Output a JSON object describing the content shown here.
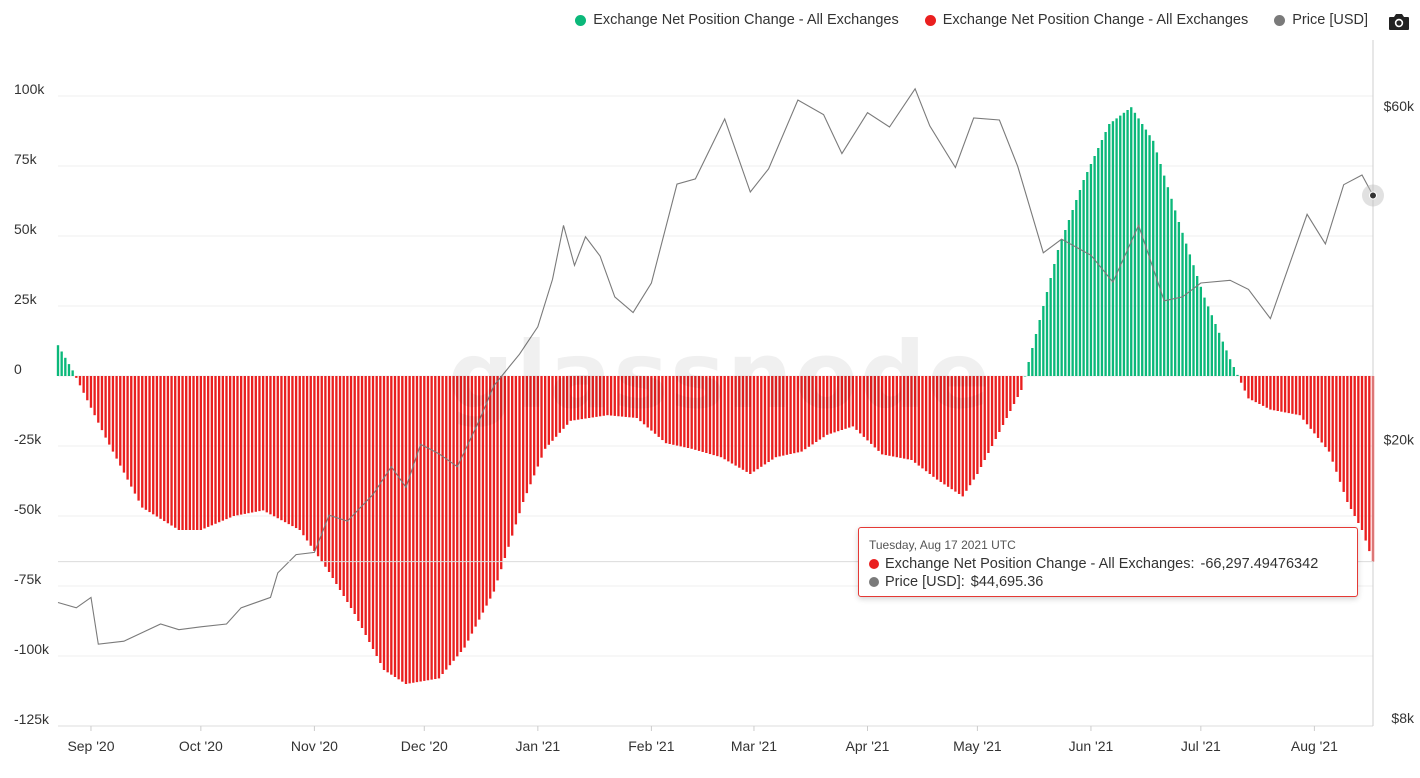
{
  "legend": {
    "items": [
      {
        "label": "Exchange Net Position Change - All Exchanges",
        "color": "#0bb87a"
      },
      {
        "label": "Exchange Net Position Change - All Exchanges",
        "color": "#ea1f1f"
      },
      {
        "label": "Price [USD]",
        "color": "#7a7a7a"
      }
    ]
  },
  "toolbar": {
    "icon": "camera-icon"
  },
  "watermark": "glassnode",
  "tooltip": {
    "date": "Tuesday, Aug 17 2021 UTC",
    "series1_label": "Exchange Net Position Change - All Exchanges:",
    "series1_value": "-66,297.49476342",
    "series1_color": "#ea1f1f",
    "series2_label": "Price [USD]:",
    "series2_value": "$44,695.36",
    "series2_color": "#7a7a7a"
  },
  "chart_data": {
    "type": "bar",
    "grid": true,
    "legend_position": "top-right",
    "x_labels": [
      "Sep '20",
      "Oct '20",
      "Nov '20",
      "Dec '20",
      "Jan '21",
      "Feb '21",
      "Mar '21",
      "Apr '21",
      "May '21",
      "Jun '21",
      "Jul '21",
      "Aug '21"
    ],
    "x_label_dates": [
      "2020-09-01",
      "2020-10-01",
      "2020-11-01",
      "2020-12-01",
      "2021-01-01",
      "2021-02-01",
      "2021-03-01",
      "2021-04-01",
      "2021-05-01",
      "2021-06-01",
      "2021-07-01",
      "2021-08-01"
    ],
    "x_range": [
      "2020-08-23",
      "2021-08-17"
    ],
    "y_left": {
      "ticks": [
        100000,
        75000,
        50000,
        25000,
        0,
        -25000,
        -50000,
        -75000,
        -100000,
        -125000
      ],
      "tick_labels": [
        "100k",
        "75k",
        "50k",
        "25k",
        "0",
        "-25k",
        "-50k",
        "-75k",
        "-100k",
        "-125k"
      ],
      "range": [
        -125000,
        100000
      ]
    },
    "y_right": {
      "ticks": [
        60000,
        20000,
        8000
      ],
      "tick_labels": [
        "$60k",
        "$20k",
        "$8k"
      ],
      "scale": "log",
      "range": [
        8000,
        60000
      ]
    },
    "net_position_change": {
      "positive_color": "#0bb87a",
      "negative_color": "#ea1f1f",
      "points": [
        [
          "2020-08-23",
          11000
        ],
        [
          "2020-08-27",
          2000
        ],
        [
          "2020-09-05",
          -22000
        ],
        [
          "2020-09-15",
          -47000
        ],
        [
          "2020-09-25",
          -55000
        ],
        [
          "2020-10-01",
          -55000
        ],
        [
          "2020-10-10",
          -50000
        ],
        [
          "2020-10-18",
          -48000
        ],
        [
          "2020-10-28",
          -55000
        ],
        [
          "2020-11-05",
          -70000
        ],
        [
          "2020-11-12",
          -85000
        ],
        [
          "2020-11-20",
          -105000
        ],
        [
          "2020-11-26",
          -110000
        ],
        [
          "2020-12-05",
          -108000
        ],
        [
          "2020-12-12",
          -97000
        ],
        [
          "2020-12-20",
          -77000
        ],
        [
          "2020-12-28",
          -45000
        ],
        [
          "2021-01-03",
          -26000
        ],
        [
          "2021-01-10",
          -16000
        ],
        [
          "2021-01-20",
          -14000
        ],
        [
          "2021-01-28",
          -15000
        ],
        [
          "2021-02-05",
          -24000
        ],
        [
          "2021-02-12",
          -26000
        ],
        [
          "2021-02-20",
          -29000
        ],
        [
          "2021-02-28",
          -35000
        ],
        [
          "2021-03-07",
          -29000
        ],
        [
          "2021-03-14",
          -27000
        ],
        [
          "2021-03-21",
          -21000
        ],
        [
          "2021-03-28",
          -18000
        ],
        [
          "2021-04-05",
          -28000
        ],
        [
          "2021-04-13",
          -30000
        ],
        [
          "2021-04-20",
          -37000
        ],
        [
          "2021-04-27",
          -43000
        ],
        [
          "2021-05-01",
          -35000
        ],
        [
          "2021-05-07",
          -20000
        ],
        [
          "2021-05-13",
          -5000
        ],
        [
          "2021-05-17",
          15000
        ],
        [
          "2021-05-23",
          45000
        ],
        [
          "2021-05-30",
          70000
        ],
        [
          "2021-06-06",
          90000
        ],
        [
          "2021-06-12",
          96000
        ],
        [
          "2021-06-18",
          84000
        ],
        [
          "2021-06-25",
          55000
        ],
        [
          "2021-07-02",
          28000
        ],
        [
          "2021-07-09",
          6000
        ],
        [
          "2021-07-14",
          -8000
        ],
        [
          "2021-07-20",
          -12000
        ],
        [
          "2021-07-28",
          -14000
        ],
        [
          "2021-08-05",
          -27000
        ],
        [
          "2021-08-10",
          -45000
        ],
        [
          "2021-08-14",
          -55000
        ],
        [
          "2021-08-17",
          -66297
        ]
      ]
    },
    "price_usd": {
      "color": "#7a7a7a",
      "points": [
        [
          "2020-08-23",
          11700
        ],
        [
          "2020-08-28",
          11500
        ],
        [
          "2020-09-01",
          11900
        ],
        [
          "2020-09-03",
          10200
        ],
        [
          "2020-09-10",
          10300
        ],
        [
          "2020-09-20",
          10900
        ],
        [
          "2020-09-25",
          10700
        ],
        [
          "2020-10-01",
          10800
        ],
        [
          "2020-10-08",
          10900
        ],
        [
          "2020-10-12",
          11500
        ],
        [
          "2020-10-20",
          11900
        ],
        [
          "2020-10-22",
          12900
        ],
        [
          "2020-10-27",
          13700
        ],
        [
          "2020-11-01",
          13800
        ],
        [
          "2020-11-05",
          15600
        ],
        [
          "2020-11-10",
          15300
        ],
        [
          "2020-11-17",
          16700
        ],
        [
          "2020-11-22",
          18300
        ],
        [
          "2020-11-26",
          17100
        ],
        [
          "2020-11-30",
          19700
        ],
        [
          "2020-12-05",
          19100
        ],
        [
          "2020-12-10",
          18300
        ],
        [
          "2020-12-16",
          21300
        ],
        [
          "2020-12-20",
          23900
        ],
        [
          "2020-12-27",
          26500
        ],
        [
          "2021-01-01",
          29000
        ],
        [
          "2021-01-05",
          33900
        ],
        [
          "2021-01-08",
          40500
        ],
        [
          "2021-01-11",
          35500
        ],
        [
          "2021-01-14",
          39000
        ],
        [
          "2021-01-18",
          36600
        ],
        [
          "2021-01-22",
          32000
        ],
        [
          "2021-01-27",
          30400
        ],
        [
          "2021-02-01",
          33500
        ],
        [
          "2021-02-08",
          46400
        ],
        [
          "2021-02-13",
          47200
        ],
        [
          "2021-02-21",
          57500
        ],
        [
          "2021-02-28",
          45200
        ],
        [
          "2021-03-05",
          48800
        ],
        [
          "2021-03-13",
          61200
        ],
        [
          "2021-03-20",
          58300
        ],
        [
          "2021-03-25",
          51300
        ],
        [
          "2021-04-01",
          58700
        ],
        [
          "2021-04-07",
          56000
        ],
        [
          "2021-04-14",
          63500
        ],
        [
          "2021-04-18",
          56200
        ],
        [
          "2021-04-25",
          49000
        ],
        [
          "2021-04-30",
          57700
        ],
        [
          "2021-05-07",
          57300
        ],
        [
          "2021-05-12",
          49200
        ],
        [
          "2021-05-19",
          37000
        ],
        [
          "2021-05-24",
          38700
        ],
        [
          "2021-06-01",
          36700
        ],
        [
          "2021-06-07",
          33600
        ],
        [
          "2021-06-14",
          40500
        ],
        [
          "2021-06-21",
          31600
        ],
        [
          "2021-06-26",
          32000
        ],
        [
          "2021-07-01",
          33500
        ],
        [
          "2021-07-09",
          33800
        ],
        [
          "2021-07-14",
          32800
        ],
        [
          "2021-07-20",
          29800
        ],
        [
          "2021-07-25",
          35400
        ],
        [
          "2021-07-30",
          42000
        ],
        [
          "2021-08-04",
          38100
        ],
        [
          "2021-08-09",
          46300
        ],
        [
          "2021-08-14",
          47800
        ],
        [
          "2021-08-17",
          44695
        ]
      ]
    },
    "crosshair_date": "2021-08-17"
  }
}
